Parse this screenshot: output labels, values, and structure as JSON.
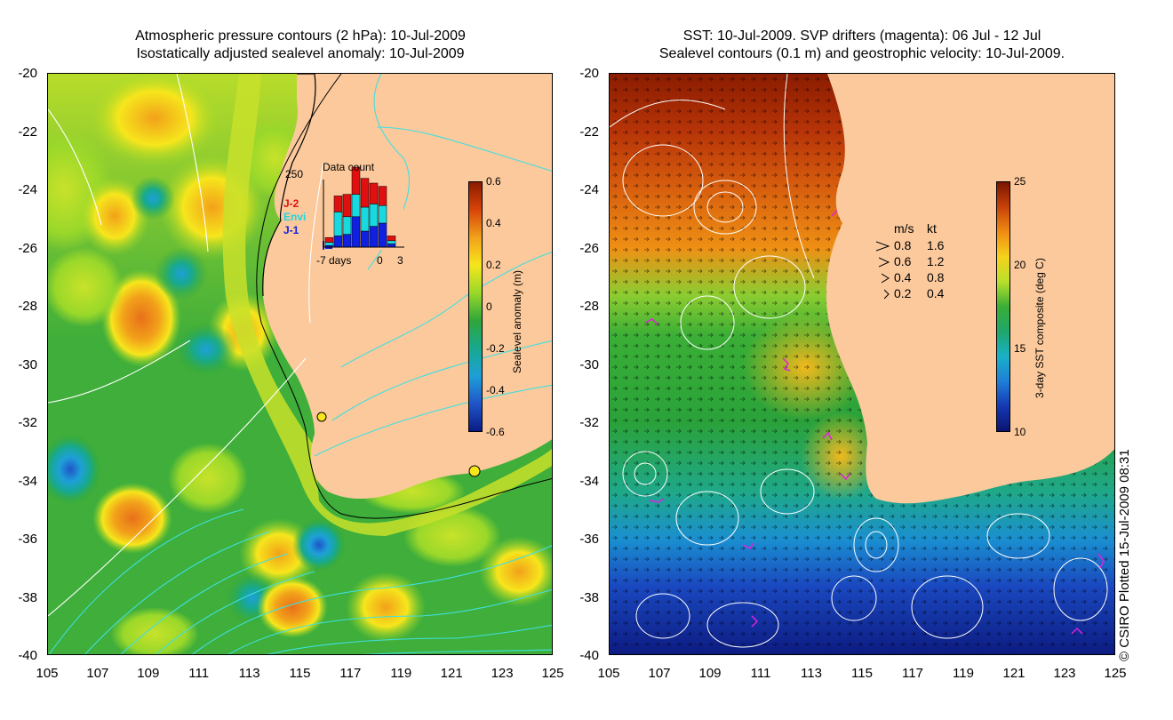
{
  "left": {
    "title_line1": "Atmospheric pressure contours (2 hPa): 10-Jul-2009",
    "title_line2": "Isostatically adjusted sealevel anomaly: 10-Jul-2009",
    "colorbar": {
      "label": "Sealevel anomaly (m)",
      "ticks": [
        "0.6",
        "0.4",
        "0.2",
        "0",
        "-0.2",
        "-0.4",
        "-0.6"
      ],
      "colors": [
        "#8b1a00",
        "#d8440a",
        "#f2a11a",
        "#f6e61c",
        "#9ad82a",
        "#2fa63a",
        "#17a98f",
        "#1ea0d8",
        "#1f55c8",
        "#0a1b86"
      ]
    },
    "inset": {
      "max_label": "250",
      "title": "Data count",
      "series": [
        {
          "name": "J-2",
          "color": "#e01010"
        },
        {
          "name": "Envi",
          "color": "#18d8e0"
        },
        {
          "name": "J-1",
          "color": "#1020e0"
        }
      ],
      "x_ticks": [
        "-7 days",
        "0",
        "3"
      ]
    }
  },
  "right": {
    "title_line1": "SST: 10-Jul-2009. SVP drifters (magenta): 06 Jul - 12 Jul",
    "title_line2": "Sealevel contours (0.1 m) and geostrophic velocity: 10-Jul-2009.",
    "colorbar": {
      "label": "3-day SST composite (deg C)",
      "ticks": [
        "25",
        "20",
        "15",
        "10"
      ],
      "colors": [
        "#7a1400",
        "#c8420a",
        "#ef8c12",
        "#f6d21c",
        "#b8e02a",
        "#3aae36",
        "#1fa66a",
        "#19b0c8",
        "#1e7fd8",
        "#1638b4",
        "#0a1470"
      ]
    },
    "velocity_legend": {
      "header_ms": "m/s",
      "header_kt": "kt",
      "rows": [
        {
          "ms": "0.8",
          "kt": "1.6"
        },
        {
          "ms": "0.6",
          "kt": "1.2"
        },
        {
          "ms": "0.4",
          "kt": "0.8"
        },
        {
          "ms": "0.2",
          "kt": "0.4"
        }
      ]
    }
  },
  "axes": {
    "y_ticks": [
      "-20",
      "-22",
      "-24",
      "-26",
      "-28",
      "-30",
      "-32",
      "-34",
      "-36",
      "-38",
      "-40"
    ],
    "x_ticks": [
      "105",
      "107",
      "109",
      "111",
      "113",
      "115",
      "117",
      "119",
      "121",
      "123",
      "125"
    ]
  },
  "colors": {
    "land": "#fbc99c",
    "contour_cyan": "#3fe0e0",
    "contour_white": "#ffffff",
    "drifter": "#e020e0"
  },
  "credit": "© CSIRO Plotted 15-Jul-2009 08:31"
}
